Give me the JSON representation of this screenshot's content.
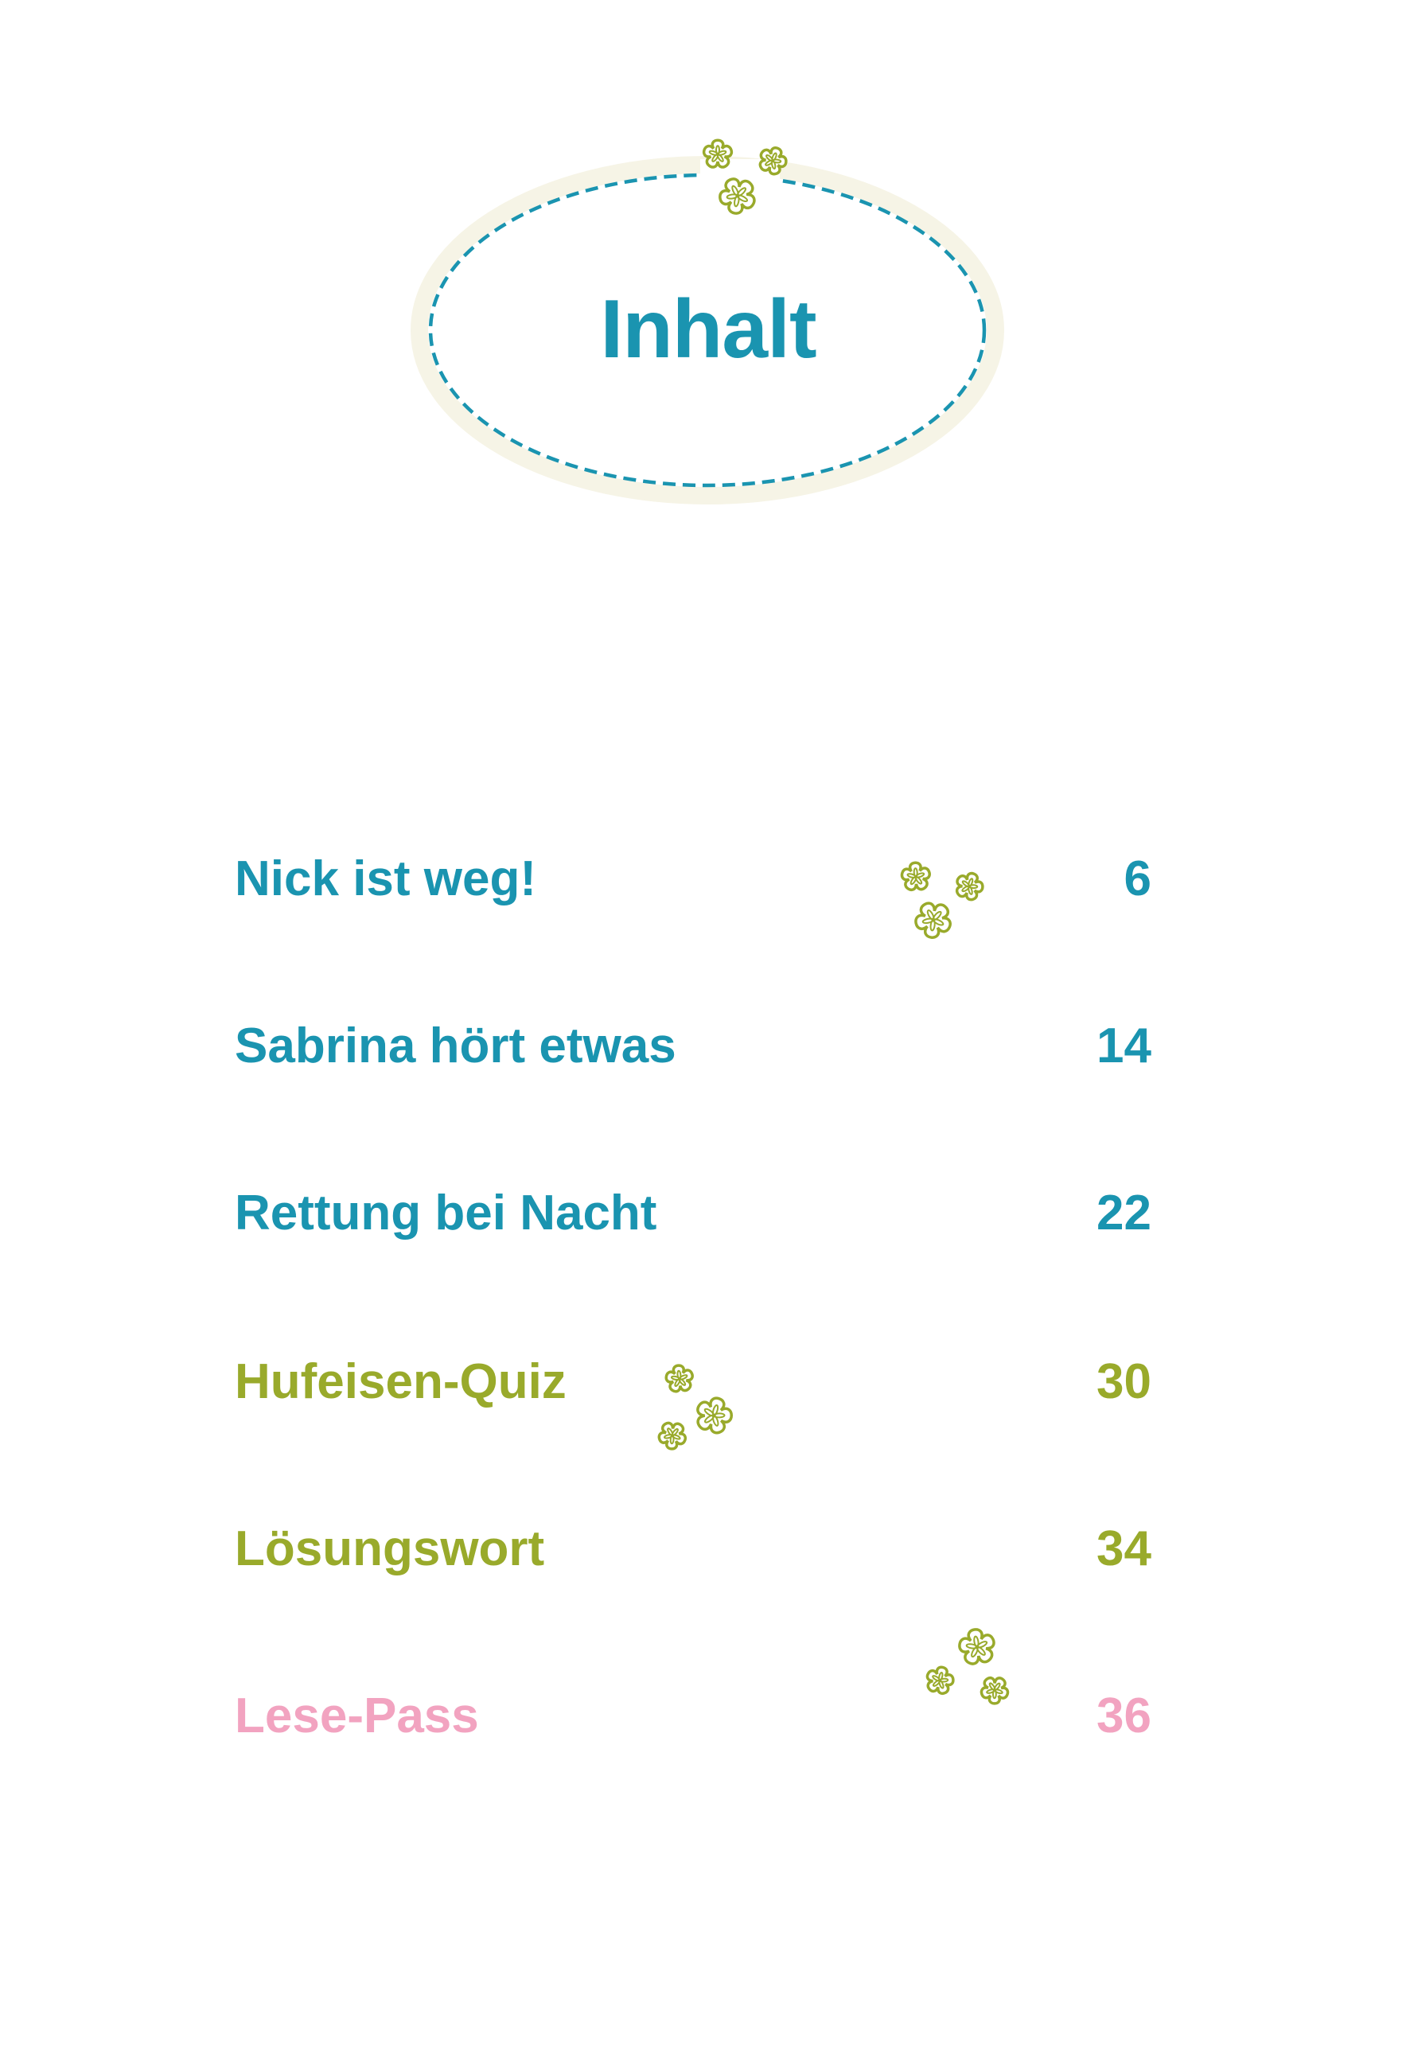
{
  "title": "Inhalt",
  "colors": {
    "teal": "#1a94b0",
    "green": "#99aa2b",
    "pink": "#f2a3c0",
    "ellipse_halo": "#f6f4e6"
  },
  "entries": [
    {
      "label": "Nick ist weg!",
      "page": "6",
      "color": "#1a94b0"
    },
    {
      "label": "Sabrina hört etwas",
      "page": "14",
      "color": "#1a94b0"
    },
    {
      "label": "Rettung bei Nacht",
      "page": "22",
      "color": "#1a94b0"
    },
    {
      "label": "Hufeisen-Quiz",
      "page": "30",
      "color": "#99aa2b"
    },
    {
      "label": "Lösungswort",
      "page": "34",
      "color": "#99aa2b"
    },
    {
      "label": "Lese-Pass",
      "page": "36",
      "color": "#f2a3c0"
    }
  ],
  "decorations": {
    "icon": "flower-outline-icon",
    "frame": "dashed-ellipse"
  }
}
